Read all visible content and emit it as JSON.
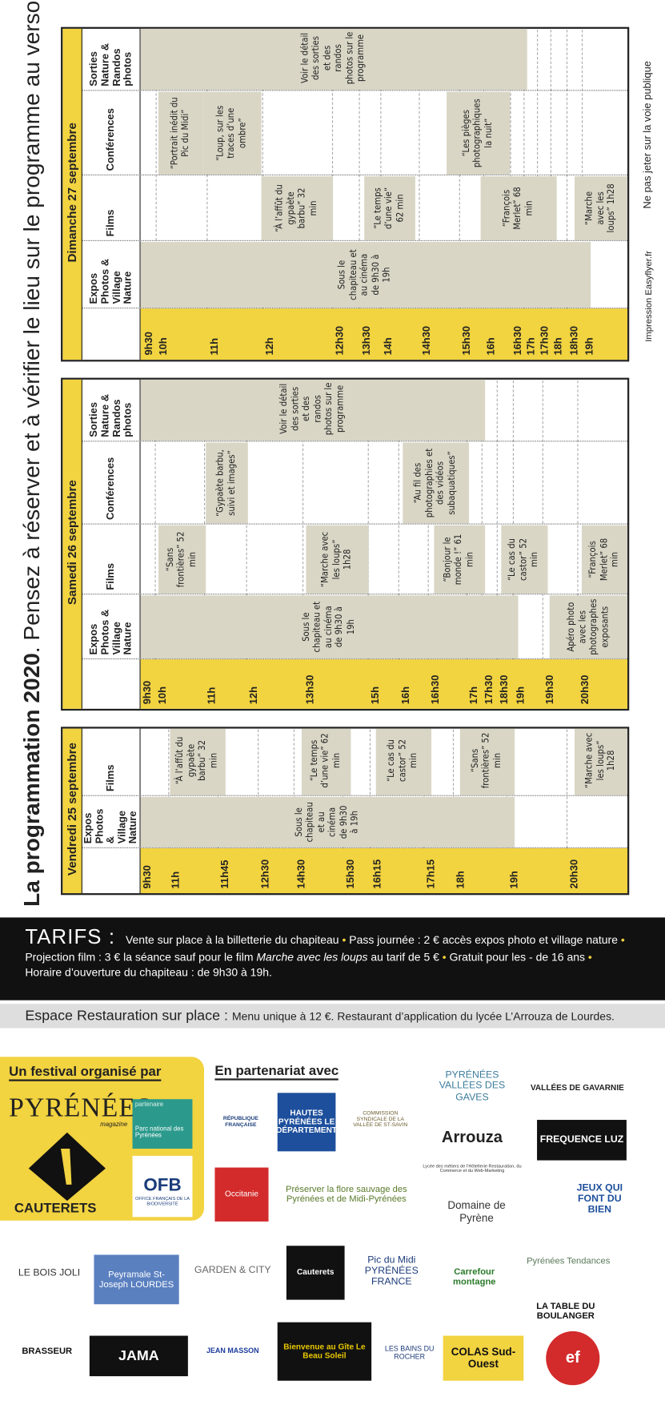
{
  "title": {
    "bold": "La programmation 2020",
    "rest": ". Pensez à réserver et à vérifier le lieu sur le programme au verso."
  },
  "schedule": [
    {
      "day": "Vendredi 25 septembre",
      "columns": [
        {
          "header": "Expos Photos & Village Nature",
          "events": [
            "Sous le chapiteau et au cinéma de 9h30 à 19h"
          ]
        },
        {
          "header": "Films",
          "events": [
            "“À l’affût du gypaète barbu” 32 min",
            "“Le temps d’une vie” 62 min",
            "“Le cas du castor” 52 min",
            "“Sans frontières” 52 min",
            "“Marche avec les loups” 1h28"
          ]
        }
      ],
      "times": [
        "9h30",
        "11h",
        "11h45",
        "12h30",
        "14h30",
        "15h30",
        "16h15",
        "17h15",
        "18h",
        "19h",
        "20h30"
      ]
    },
    {
      "day": "Samedi 26 septembre",
      "columns": [
        {
          "header": "Expos Photos & Village Nature",
          "events": [
            "Sous le chapiteau et au cinéma de 9h30 à 19h",
            "Apéro photo avec les photographes exposants"
          ]
        },
        {
          "header": "Films",
          "events": [
            "“Sans frontières” 52 min",
            "“Marche avec les loups” 1h28",
            "“Bonjour le monde !” 61 min",
            "“Le cas du castor” 52 min",
            "“François Merlet” 68 min"
          ]
        },
        {
          "header": "Conférences",
          "events": [
            "“Gypaète barbu, suivi et images”",
            "“Au fil des photographies et des vidéos subaquatiques”"
          ]
        },
        {
          "header": "Sorties Nature & Randos photos",
          "events": [
            "Voir le détail des sorties et des randos photos sur le programme"
          ]
        }
      ],
      "times": [
        "9h30",
        "10h",
        "11h",
        "12h",
        "13h30",
        "15h",
        "16h",
        "16h30",
        "17h",
        "17h30",
        "18h30",
        "19h",
        "19h30",
        "20h30"
      ]
    },
    {
      "day": "Dimanche 27 septembre",
      "columns": [
        {
          "header": "Expos Photos & Village Nature",
          "events": [
            "Sous le chapiteau et au cinéma de 9h30 à 19h"
          ]
        },
        {
          "header": "Films",
          "events": [
            "“À l’affût du gypaète barbu” 32 min",
            "“Le temps d’une vie” 62 min",
            "“François Merlet” 68 min",
            "“Marche avec les loups” 1h28"
          ]
        },
        {
          "header": "Conférences",
          "events": [
            "“Portrait inédit du Pic du Midi”",
            "“Loup, sur les traces d’une ombre”",
            "“Les pièges photographiques la nuit”"
          ]
        },
        {
          "header": "Sorties Nature & Randos photos",
          "events": [
            "Voir le détail des sorties et des randos photos sur le programme"
          ]
        }
      ],
      "times": [
        "9h30",
        "10h",
        "11h",
        "12h",
        "12h30",
        "13h30",
        "14h",
        "14h30",
        "15h30",
        "16h",
        "16h30",
        "17h",
        "17h30",
        "18h",
        "18h30",
        "19h"
      ]
    }
  ],
  "tarifs": {
    "label": "TARIFS :",
    "line1a": "Vente sur place à la billetterie du chapiteau",
    "line1b": "Pass journée : 2 € accès expos photo et village nature",
    "line2a": "Projection film : 3 € la séance sauf pour le film",
    "line2film": "Marche avec les loups",
    "line2b": "au tarif de 5 €",
    "line2c": "Gratuit pour les - de 16 ans",
    "line3": "Horaire d’ouverture du chapiteau : de 9h30 à 19h."
  },
  "restauration": {
    "label": "Espace Restauration sur place :",
    "text": "Menu unique à 12 €. Restaurant d’application du lycée L’Arrouza de Lourdes."
  },
  "organizers": {
    "heading": "Un festival organisé par",
    "magazine": "PYRÉNÉES",
    "magazine_sub": "magazine",
    "town": "CAUTERETS",
    "parc_tag": "partenaire",
    "parc": "Parc national des Pyrénées",
    "ofb": "OFB",
    "ofb_sub": "OFFICE FRANÇAIS DE LA BIODIVERSITÉ"
  },
  "partners": {
    "heading": "En partenariat avec",
    "logos": [
      "PYRÉNÉES VALLÉES DES GAVES",
      "VALLÉES DE GAVARNIE",
      "RÉPUBLIQUE FRANÇAISE",
      "HAUTES PYRÉNÉES LE DÉPARTEMENT",
      "COMMISSION SYNDICALE DE LA VALLÉE DE ST-SAVIN",
      "Arrouza",
      "Lycée des métiers de l’Hôtellerie Restauration, du Commerce et du Web-Marketing",
      "FREQUENCE LUZ",
      "Occitanie",
      "Préserver la flore sauvage des Pyrénées et de Midi-Pyrénées",
      "Domaine de Pyrène",
      "JEUX QUI FONT DU BIEN",
      "Pyrénées Tendances",
      "LA TABLE DU BOULANGER",
      "LE BOIS JOLI",
      "Peyramale St-Joseph LOURDES",
      "GARDEN & CITY",
      "Cauterets",
      "Pic du Midi PYRÉNÉES FRANCE",
      "Carrefour montagne",
      "BRASSEUR",
      "JAMA",
      "JEAN MASSON",
      "Bienvenue au Gîte Le Beau Soleil",
      "LES BAINS DU ROCHER",
      "COLAS Sud-Ouest",
      "ef"
    ]
  },
  "footer": {
    "printer": "Impression Easyflyer.fr",
    "notice": "Ne pas jeter sur la voie publique"
  }
}
